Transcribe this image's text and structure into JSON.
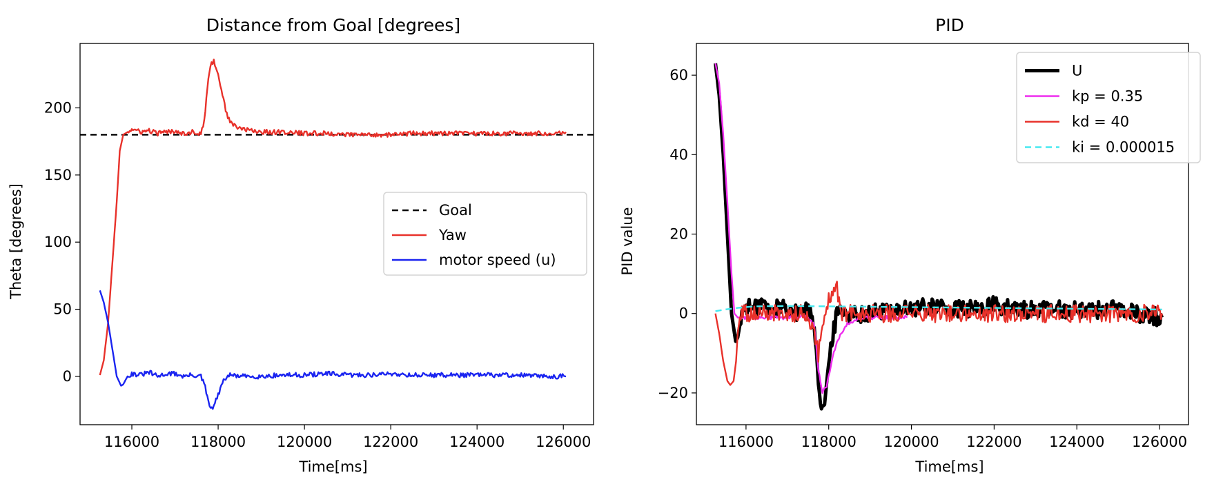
{
  "chart_data": [
    {
      "type": "line",
      "title": "Distance from Goal [degrees]",
      "xlabel": "Time[ms]",
      "ylabel": "Theta [degrees]",
      "xlim": [
        114800,
        126700
      ],
      "ylim": [
        -36,
        248
      ],
      "xticks": [
        116000,
        118000,
        120000,
        122000,
        124000,
        126000
      ],
      "yticks": [
        0,
        50,
        100,
        150,
        200
      ],
      "legend_position": "center-right",
      "grid": false,
      "series": [
        {
          "name": "Goal",
          "color": "#000000",
          "dash": "dashed",
          "x": [
            114800,
            126700
          ],
          "y": [
            180,
            180
          ]
        },
        {
          "name": "Yaw",
          "color": "#e8312a",
          "dash": "solid",
          "x": [
            115260,
            115350,
            115450,
            115550,
            115650,
            115720,
            115800,
            115900,
            116000,
            116200,
            116400,
            116600,
            116800,
            117000,
            117200,
            117400,
            117600,
            117680,
            117750,
            117820,
            117900,
            117950,
            118000,
            118100,
            118200,
            118300,
            118400,
            118600,
            118800,
            119000,
            119500,
            120000,
            120500,
            121000,
            121500,
            122000,
            122500,
            123000,
            123500,
            124000,
            124500,
            125000,
            125500,
            126060
          ],
          "y": [
            1,
            12,
            40,
            85,
            130,
            168,
            180,
            182,
            184,
            182,
            183,
            181,
            182,
            183,
            181,
            182,
            181,
            190,
            215,
            232,
            235,
            230,
            225,
            210,
            195,
            189,
            186,
            184,
            183,
            182,
            182,
            181,
            181,
            180,
            180,
            180,
            181,
            181,
            181,
            181,
            181,
            181,
            181,
            182
          ]
        },
        {
          "name": "motor speed (u)",
          "color": "#1a24f0",
          "dash": "solid",
          "x": [
            115260,
            115350,
            115450,
            115550,
            115650,
            115750,
            115800,
            115900,
            116000,
            116200,
            116400,
            116600,
            116800,
            117000,
            117200,
            117400,
            117600,
            117700,
            117750,
            117800,
            117850,
            117900,
            118000,
            118100,
            118200,
            118300,
            118500,
            119000,
            119500,
            120000,
            120500,
            121000,
            121500,
            122000,
            122500,
            123000,
            123500,
            124000,
            124500,
            125000,
            125500,
            126060
          ],
          "y": [
            64,
            55,
            40,
            20,
            0,
            -7,
            -6,
            0,
            2,
            1,
            3,
            0,
            2,
            2,
            0,
            1,
            0,
            -8,
            -16,
            -22,
            -24,
            -22,
            -14,
            -5,
            0,
            1,
            0,
            0,
            1,
            1,
            2,
            1,
            1,
            2,
            1,
            1,
            1,
            1,
            1,
            1,
            0,
            0
          ]
        }
      ]
    },
    {
      "type": "line",
      "title": "PID",
      "xlabel": "Time[ms]",
      "ylabel": "PID value",
      "xlim": [
        114800,
        126700
      ],
      "ylim": [
        -28,
        68
      ],
      "xticks": [
        116000,
        118000,
        120000,
        122000,
        124000,
        126000
      ],
      "yticks": [
        -20,
        0,
        20,
        40,
        60
      ],
      "legend_position": "upper-right",
      "grid": false,
      "series": [
        {
          "name": "U",
          "color": "#000000",
          "dash": "solid",
          "width": "thick",
          "x": [
            115260,
            115350,
            115450,
            115550,
            115650,
            115750,
            115800,
            115900,
            116000,
            116200,
            116400,
            116600,
            116800,
            117000,
            117200,
            117400,
            117600,
            117700,
            117750,
            117800,
            117850,
            117900,
            118000,
            118100,
            118200,
            118300,
            118500,
            119000,
            119500,
            120000,
            120500,
            121000,
            121500,
            122000,
            122500,
            123000,
            123500,
            124000,
            124500,
            125000,
            125500,
            126060
          ],
          "y": [
            63,
            55,
            40,
            20,
            0,
            -7,
            -6,
            0,
            2,
            1,
            3,
            0,
            2,
            2,
            0,
            1,
            0,
            -8,
            -16,
            -22,
            -24,
            -22,
            -14,
            -5,
            0,
            1,
            0,
            0,
            1,
            1,
            2,
            1,
            1,
            2,
            1,
            1,
            1,
            1,
            1,
            1,
            0,
            -1
          ]
        },
        {
          "name": "kp = 0.35",
          "color": "#ee2cee",
          "dash": "solid",
          "x": [
            115260,
            115350,
            115450,
            115550,
            115650,
            115720,
            115800,
            115900,
            116000,
            116500,
            117000,
            117500,
            117650,
            117750,
            117850,
            117950,
            118050,
            118200,
            118400,
            118600,
            118800,
            119000,
            119500,
            119900
          ],
          "y": [
            63,
            58,
            45,
            28,
            10,
            0,
            -1,
            -1,
            -1,
            -1,
            -1,
            -1,
            -3,
            -14,
            -20,
            -18,
            -13,
            -7,
            -3,
            -2,
            -1,
            -1,
            -1,
            -1
          ]
        },
        {
          "name": "kd = 40",
          "color": "#e8312a",
          "dash": "solid",
          "x": [
            115260,
            115350,
            115450,
            115550,
            115620,
            115700,
            115760,
            115800,
            115850,
            115900,
            116000,
            116500,
            117000,
            117500,
            117650,
            117750,
            117800,
            117850,
            117950,
            118050,
            118150,
            118200,
            118250,
            118300,
            118400,
            118600,
            119000,
            119500,
            120000,
            120500,
            121000,
            121500,
            122000,
            122500,
            123000,
            123500,
            124000,
            124500,
            125000,
            125500,
            126060
          ],
          "y": [
            0,
            -5,
            -12,
            -17,
            -18,
            -17,
            -12,
            -5,
            -1,
            0,
            0,
            0,
            0,
            0,
            -5,
            -10,
            -6,
            -2,
            2,
            4,
            5,
            6,
            3,
            0,
            0,
            0,
            0,
            0,
            0,
            0,
            0,
            0,
            0,
            0,
            0,
            0,
            0,
            0,
            0,
            0,
            0
          ]
        },
        {
          "name": "ki = 0.000015",
          "color": "#46e9f0",
          "dash": "dashed",
          "x": [
            115260,
            115500,
            115800,
            116200,
            117000,
            118000,
            119000,
            120000,
            122000,
            124000,
            126060
          ],
          "y": [
            0.6,
            1.0,
            1.4,
            1.8,
            1.9,
            1.8,
            1.7,
            1.6,
            1.4,
            1.2,
            1.0
          ]
        }
      ]
    }
  ]
}
